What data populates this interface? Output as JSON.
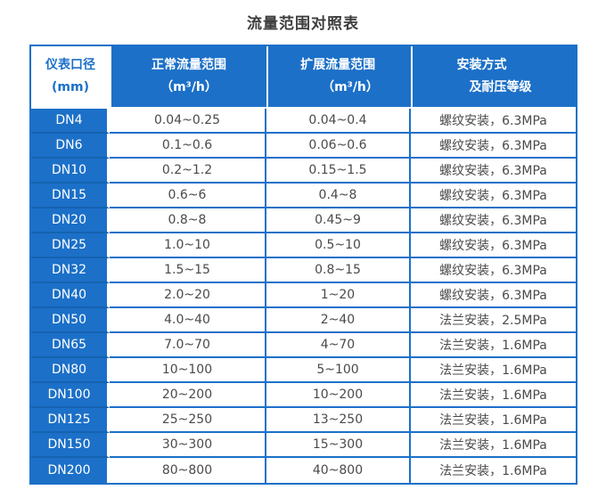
{
  "page": {
    "title": "流量范围对照表"
  },
  "colors": {
    "primary_blue": "#1c70c8",
    "dark_blue_divider": "#1463b0",
    "header_text": "#ffffff",
    "body_text": "#4a4a4a",
    "title_text": "#3d3d3d"
  },
  "table": {
    "headers": [
      {
        "line1": "仪表口径",
        "line2": "(mm)"
      },
      {
        "line1": "正常流量范围",
        "line2": "（m³/h）"
      },
      {
        "line1": "扩展流量范围",
        "line2": "（m³/h）"
      },
      {
        "line1": "安装方式",
        "line2": "及耐压等级"
      }
    ],
    "rows": [
      {
        "dn": "DN4",
        "normal": "0.04~0.25",
        "extended": "0.04~0.4",
        "install": "螺纹安装，6.3MPa"
      },
      {
        "dn": "DN6",
        "normal": "0.1~0.6",
        "extended": "0.06~0.6",
        "install": "螺纹安装，6.3MPa"
      },
      {
        "dn": "DN10",
        "normal": "0.2~1.2",
        "extended": "0.15~1.5",
        "install": "螺纹安装，6.3MPa"
      },
      {
        "dn": "DN15",
        "normal": "0.6~6",
        "extended": "0.4~8",
        "install": "螺纹安装，6.3MPa"
      },
      {
        "dn": "DN20",
        "normal": "0.8~8",
        "extended": "0.45~9",
        "install": "螺纹安装，6.3MPa"
      },
      {
        "dn": "DN25",
        "normal": "1.0~10",
        "extended": "0.5~10",
        "install": "螺纹安装，6.3MPa"
      },
      {
        "dn": "DN32",
        "normal": "1.5~15",
        "extended": "0.8~15",
        "install": "螺纹安装，6.3MPa"
      },
      {
        "dn": "DN40",
        "normal": "2.0~20",
        "extended": "1~20",
        "install": "螺纹安装，6.3MPa"
      },
      {
        "dn": "DN50",
        "normal": "4.0~40",
        "extended": "2~40",
        "install": "法兰安装，2.5MPa"
      },
      {
        "dn": "DN65",
        "normal": "7.0~70",
        "extended": "4~70",
        "install": "法兰安装，1.6MPa"
      },
      {
        "dn": "DN80",
        "normal": "10~100",
        "extended": "5~100",
        "install": "法兰安装，1.6MPa"
      },
      {
        "dn": "DN100",
        "normal": "20~200",
        "extended": "10~200",
        "install": "法兰安装，1.6MPa"
      },
      {
        "dn": "DN125",
        "normal": "25~250",
        "extended": "13~250",
        "install": "法兰安装，1.6MPa"
      },
      {
        "dn": "DN150",
        "normal": "30~300",
        "extended": "15~300",
        "install": "法兰安装，1.6MPa"
      },
      {
        "dn": "DN200",
        "normal": "80~800",
        "extended": "40~800",
        "install": "法兰安装，1.6MPa"
      }
    ]
  },
  "chart_data": {
    "type": "table",
    "title": "流量范围对照表",
    "columns": [
      "仪表口径(mm)",
      "正常流量范围（m³/h）",
      "扩展流量范围（m³/h）",
      "安装方式及耐压等级"
    ],
    "rows": [
      [
        "DN4",
        "0.04~0.25",
        "0.04~0.4",
        "螺纹安装，6.3MPa"
      ],
      [
        "DN6",
        "0.1~0.6",
        "0.06~0.6",
        "螺纹安装，6.3MPa"
      ],
      [
        "DN10",
        "0.2~1.2",
        "0.15~1.5",
        "螺纹安装，6.3MPa"
      ],
      [
        "DN15",
        "0.6~6",
        "0.4~8",
        "螺纹安装，6.3MPa"
      ],
      [
        "DN20",
        "0.8~8",
        "0.45~9",
        "螺纹安装，6.3MPa"
      ],
      [
        "DN25",
        "1.0~10",
        "0.5~10",
        "螺纹安装，6.3MPa"
      ],
      [
        "DN32",
        "1.5~15",
        "0.8~15",
        "螺纹安装，6.3MPa"
      ],
      [
        "DN40",
        "2.0~20",
        "1~20",
        "螺纹安装，6.3MPa"
      ],
      [
        "DN50",
        "4.0~40",
        "2~40",
        "法兰安装，2.5MPa"
      ],
      [
        "DN65",
        "7.0~70",
        "4~70",
        "法兰安装，1.6MPa"
      ],
      [
        "DN80",
        "10~100",
        "5~100",
        "法兰安装，1.6MPa"
      ],
      [
        "DN100",
        "20~200",
        "10~200",
        "法兰安装，1.6MPa"
      ],
      [
        "DN125",
        "25~250",
        "13~250",
        "法兰安装，1.6MPa"
      ],
      [
        "DN150",
        "30~300",
        "15~300",
        "法兰安装，1.6MPa"
      ],
      [
        "DN200",
        "80~800",
        "40~800",
        "法兰安装，1.6MPa"
      ]
    ]
  }
}
